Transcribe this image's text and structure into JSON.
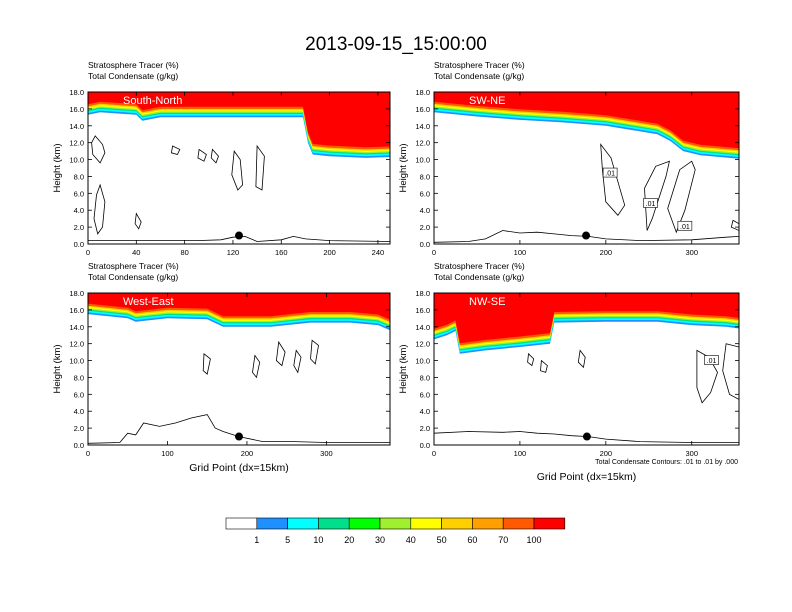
{
  "page": {
    "title": "2013-09-15_15:00:00",
    "footnote": "Total Condensate Contours: .01 to .01 by .000"
  },
  "colors": {
    "levels": [
      "#ffffff",
      "#1e90ff",
      "#00ffff",
      "#00e08c",
      "#00ff00",
      "#a0f030",
      "#ffff00",
      "#ffd000",
      "#ffa000",
      "#ff5a00",
      "#ff0000"
    ]
  },
  "colorbar": {
    "labels": [
      "1",
      "5",
      "10",
      "20",
      "30",
      "40",
      "50",
      "60",
      "70",
      "100"
    ]
  },
  "chart_data": [
    {
      "type": "heatmap",
      "name": "South-North",
      "title": "South-North",
      "variable_labels": [
        "Stratosphere Tracer   (%)",
        "Total Condensate   (g/kg)"
      ],
      "ylabel": "Height (km)",
      "xlabel": "",
      "xlim": [
        0,
        250
      ],
      "ylim": [
        0,
        18
      ],
      "xticks": [
        "0",
        "40",
        "80",
        "120",
        "160",
        "200",
        "240"
      ],
      "yticks": [
        "0.0",
        "2.0",
        "4.0",
        "6.0",
        "8.0",
        "10.0",
        "12.0",
        "14.0",
        "16.0",
        "18.0"
      ],
      "tracer_base_km": [
        [
          0,
          15.3
        ],
        [
          10,
          15.6
        ],
        [
          40,
          15.3
        ],
        [
          45,
          14.6
        ],
        [
          60,
          15.0
        ],
        [
          100,
          15.0
        ],
        [
          150,
          15.0
        ],
        [
          178,
          15.0
        ],
        [
          182,
          12.0
        ],
        [
          186,
          10.6
        ],
        [
          200,
          10.4
        ],
        [
          230,
          10.2
        ],
        [
          250,
          10.3
        ]
      ],
      "contour_labels": [],
      "marker": {
        "x": 125,
        "y": 1.0
      }
    },
    {
      "type": "heatmap",
      "name": "SW-NE",
      "title": "SW-NE",
      "variable_labels": [
        "Stratosphere Tracer   (%)",
        "Total Condensate   (g/kg)"
      ],
      "ylabel": "Height (km)",
      "xlabel": "",
      "xlim": [
        0,
        355
      ],
      "ylim": [
        0,
        18
      ],
      "xticks": [
        "0",
        "100",
        "200",
        "300"
      ],
      "yticks": [
        "0.0",
        "2.0",
        "4.0",
        "6.0",
        "8.0",
        "10.0",
        "12.0",
        "14.0",
        "16.0",
        "18.0"
      ],
      "tracer_base_km": [
        [
          0,
          15.6
        ],
        [
          50,
          15.1
        ],
        [
          100,
          14.7
        ],
        [
          150,
          14.4
        ],
        [
          200,
          14.0
        ],
        [
          260,
          13.0
        ],
        [
          275,
          12.2
        ],
        [
          290,
          11.0
        ],
        [
          310,
          10.5
        ],
        [
          355,
          10.1
        ]
      ],
      "contour_labels": [
        {
          "text": ".01",
          "x": 205,
          "y": 8.4
        },
        {
          "text": ".01",
          "x": 252,
          "y": 4.8
        },
        {
          "text": ".01",
          "x": 292,
          "y": 2.1
        }
      ],
      "marker": {
        "x": 177,
        "y": 1.0
      }
    },
    {
      "type": "heatmap",
      "name": "West-East",
      "title": "West-East",
      "variable_labels": [
        "Stratosphere Tracer   (%)",
        "Total Condensate   (g/kg)"
      ],
      "ylabel": "Height (km)",
      "xlabel": "Grid Point (dx=15km)",
      "xlim": [
        0,
        380
      ],
      "ylim": [
        0,
        18
      ],
      "xticks": [
        "0",
        "100",
        "200",
        "300"
      ],
      "yticks": [
        "0.0",
        "2.0",
        "4.0",
        "6.0",
        "8.0",
        "10.0",
        "12.0",
        "14.0",
        "16.0",
        "18.0"
      ],
      "tracer_base_km": [
        [
          0,
          15.5
        ],
        [
          50,
          15.0
        ],
        [
          60,
          14.6
        ],
        [
          100,
          15.0
        ],
        [
          150,
          14.9
        ],
        [
          170,
          14.0
        ],
        [
          230,
          14.0
        ],
        [
          280,
          14.5
        ],
        [
          330,
          14.5
        ],
        [
          365,
          14.2
        ],
        [
          380,
          13.6
        ]
      ],
      "contour_labels": [],
      "marker": {
        "x": 190,
        "y": 1.0
      }
    },
    {
      "type": "heatmap",
      "name": "NW-SE",
      "title": "NW-SE",
      "variable_labels": [
        "Stratosphere Tracer   (%)",
        "Total Condensate   (g/kg)"
      ],
      "ylabel": "Height (km)",
      "xlabel": "Grid Point (dx=15km)",
      "xlim": [
        0,
        355
      ],
      "ylim": [
        0,
        18
      ],
      "xticks": [
        "0",
        "100",
        "200",
        "300"
      ],
      "yticks": [
        "0.0",
        "2.0",
        "4.0",
        "6.0",
        "8.0",
        "10.0",
        "12.0",
        "14.0",
        "16.0",
        "18.0"
      ],
      "tracer_base_km": [
        [
          0,
          12.5
        ],
        [
          15,
          13.0
        ],
        [
          25,
          13.5
        ],
        [
          30,
          10.8
        ],
        [
          60,
          11.2
        ],
        [
          100,
          11.6
        ],
        [
          135,
          12.0
        ],
        [
          140,
          14.5
        ],
        [
          200,
          14.6
        ],
        [
          260,
          14.6
        ],
        [
          300,
          14.2
        ],
        [
          340,
          14.0
        ],
        [
          355,
          13.8
        ]
      ],
      "contour_labels": [
        {
          "text": ".01",
          "x": 323,
          "y": 10.0
        }
      ],
      "marker": {
        "x": 178,
        "y": 1.0
      }
    }
  ]
}
